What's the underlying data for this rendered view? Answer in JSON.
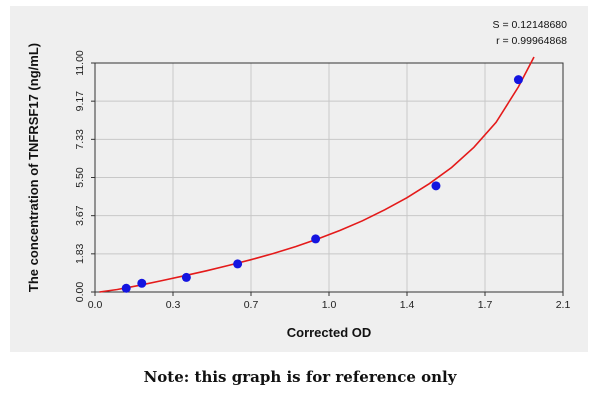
{
  "chart_data": {
    "type": "scatter",
    "xlabel": "Corrected OD",
    "ylabel": "The concentration of TNFRSF17 (ng/mL)",
    "x_ticks": [
      "0.0",
      "0.3",
      "0.7",
      "1.0",
      "1.4",
      "1.7",
      "2.1"
    ],
    "y_ticks": [
      "0.00",
      "1.83",
      "3.67",
      "5.50",
      "7.33",
      "9.17",
      "11.00"
    ],
    "xlim": [
      0,
      2.1
    ],
    "ylim": [
      0,
      11
    ],
    "grid": true,
    "stats": [
      "S = 0.12148680",
      "r = 0.99964868"
    ],
    "points": [
      {
        "x": 0.14,
        "y": 0.18
      },
      {
        "x": 0.21,
        "y": 0.42
      },
      {
        "x": 0.41,
        "y": 0.7
      },
      {
        "x": 0.64,
        "y": 1.35
      },
      {
        "x": 0.99,
        "y": 2.55
      },
      {
        "x": 1.53,
        "y": 5.1
      },
      {
        "x": 1.9,
        "y": 10.2
      }
    ],
    "curve": [
      [
        0.02,
        0.0
      ],
      [
        0.1,
        0.12
      ],
      [
        0.2,
        0.32
      ],
      [
        0.3,
        0.55
      ],
      [
        0.4,
        0.78
      ],
      [
        0.5,
        1.02
      ],
      [
        0.6,
        1.28
      ],
      [
        0.7,
        1.55
      ],
      [
        0.8,
        1.85
      ],
      [
        0.9,
        2.18
      ],
      [
        1.0,
        2.55
      ],
      [
        1.1,
        2.96
      ],
      [
        1.2,
        3.42
      ],
      [
        1.3,
        3.95
      ],
      [
        1.4,
        4.53
      ],
      [
        1.5,
        5.2
      ],
      [
        1.6,
        5.98
      ],
      [
        1.7,
        6.95
      ],
      [
        1.8,
        8.15
      ],
      [
        1.9,
        9.85
      ],
      [
        1.97,
        11.5
      ]
    ],
    "colors": {
      "points": "#1414e0",
      "curve": "#e41a1a",
      "grid": "#c8c8c8",
      "axis": "#333333"
    }
  },
  "note": "Note: this graph is for reference only"
}
